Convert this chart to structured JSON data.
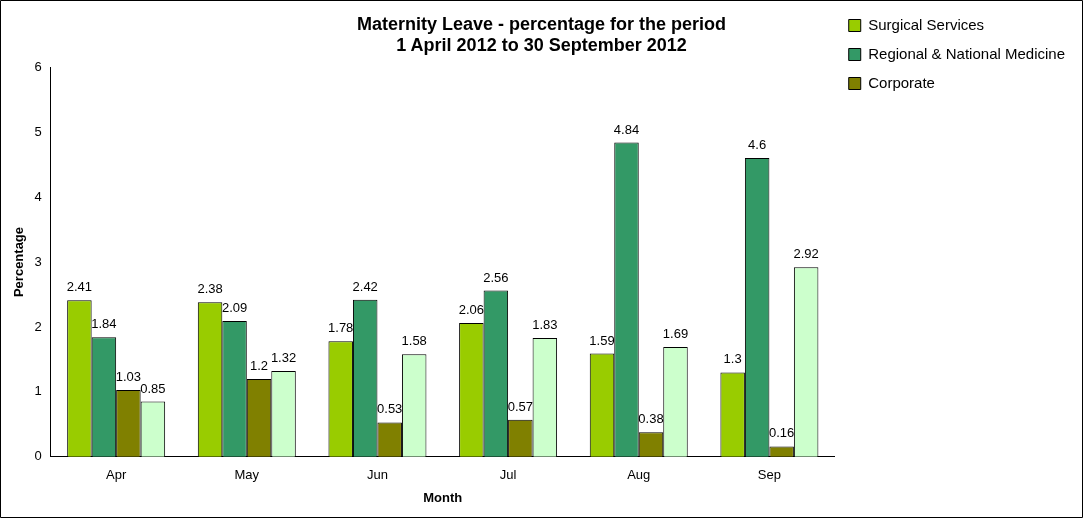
{
  "chart_data": {
    "type": "bar",
    "title": "Maternity Leave - percentage for the period\n1 April 2012 to 30 September 2012",
    "xlabel": "Month",
    "ylabel": "Percentage",
    "categories": [
      "Apr",
      "May",
      "Jun",
      "Jul",
      "Aug",
      "Sep"
    ],
    "series": [
      {
        "name": "Surgical Services",
        "color": "#99cc00",
        "values": [
          2.41,
          2.38,
          1.78,
          2.06,
          1.59,
          1.3
        ]
      },
      {
        "name": "Regional & National Medicine",
        "color": "#339966",
        "values": [
          1.84,
          2.09,
          2.42,
          2.56,
          4.84,
          4.6
        ]
      },
      {
        "name": "Corporate",
        "color": "#808000",
        "values": [
          1.03,
          1.2,
          0.53,
          0.57,
          0.38,
          0.16
        ]
      },
      {
        "color": "#ccffcc",
        "values": [
          0.85,
          1.32,
          1.58,
          1.83,
          1.69,
          2.92
        ]
      }
    ],
    "ylim": [
      0,
      6
    ],
    "yticks": [
      0,
      1,
      2,
      3,
      4,
      5,
      6
    ],
    "grid": false,
    "legend": "top right",
    "data_labels": true
  }
}
